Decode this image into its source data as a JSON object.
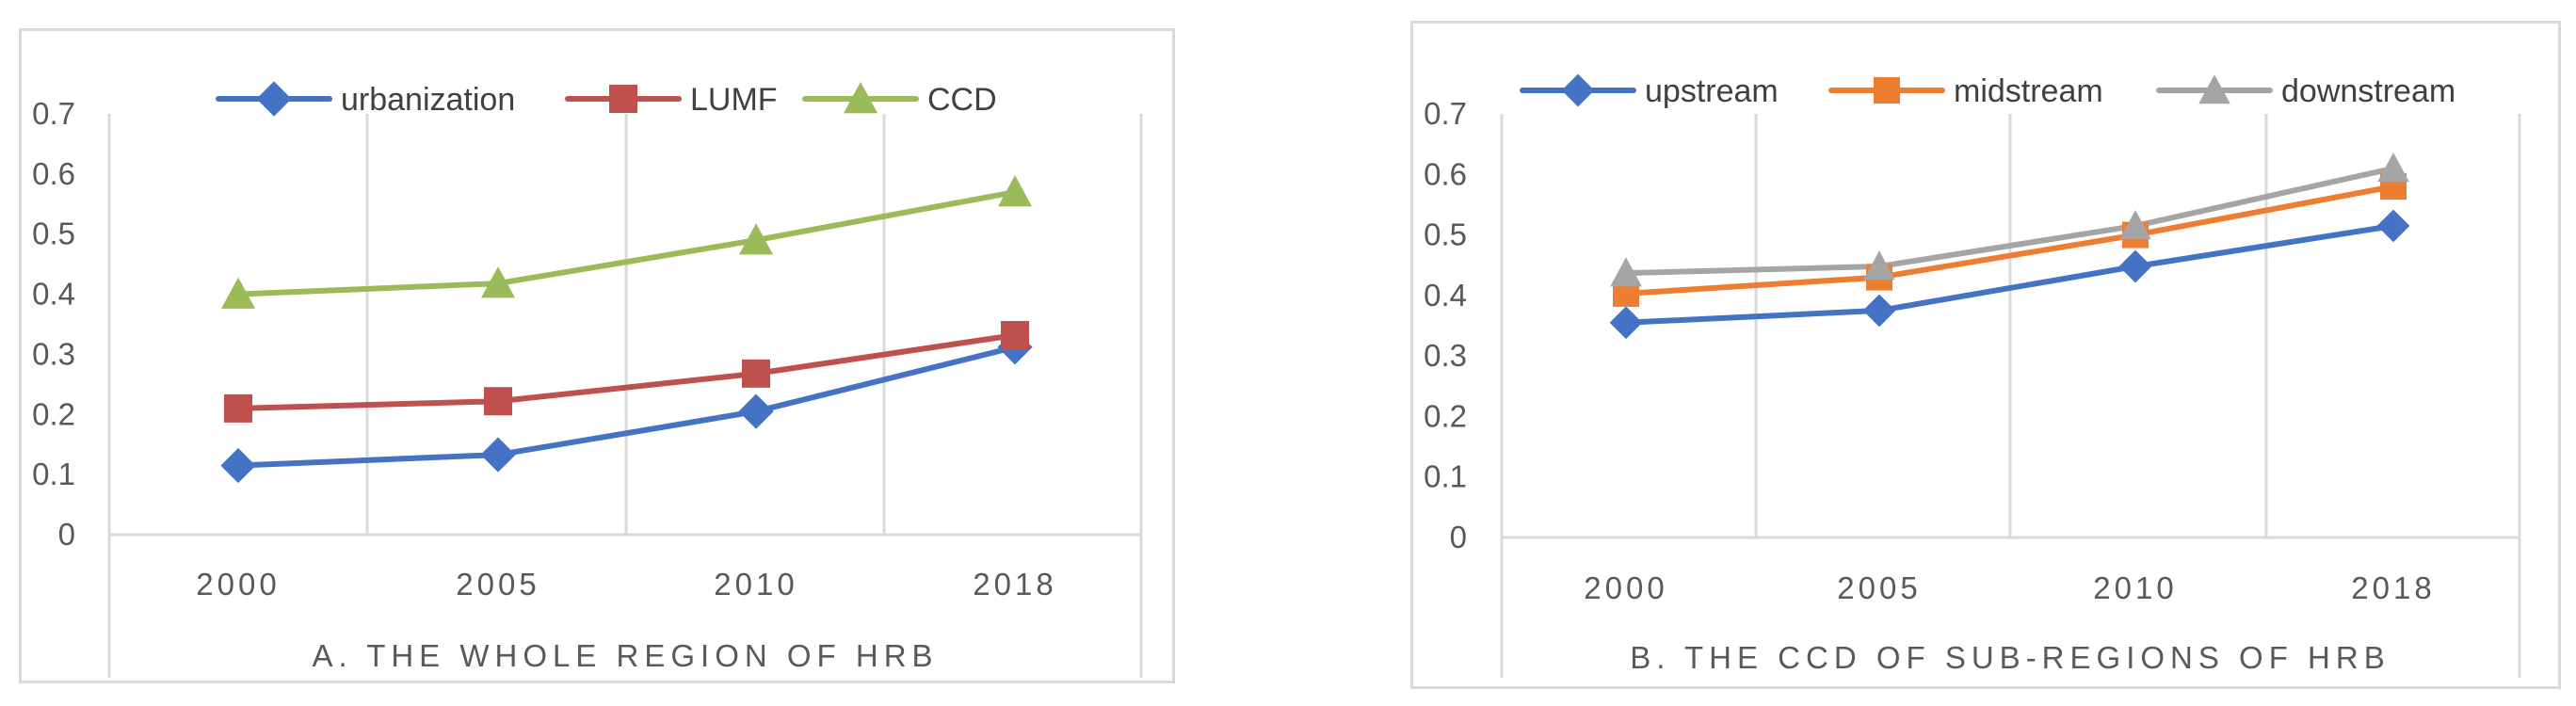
{
  "colors": {
    "grid": "#d9d9d9",
    "axis_text": "#595959",
    "border": "#d9d9d9"
  },
  "chart_data": [
    {
      "type": "line",
      "title": "",
      "caption": "A. THE WHOLE REGION OF  HRB",
      "categories": [
        "2000",
        "2005",
        "2010",
        "2018"
      ],
      "ylim": [
        0,
        0.7
      ],
      "yticks": [
        "0",
        "0.1",
        "0.2",
        "0.3",
        "0.4",
        "0.5",
        "0.6",
        "0.7"
      ],
      "grid": "vertical",
      "legend_position": "top",
      "series": [
        {
          "name": "urbanization",
          "values": [
            0.115,
            0.133,
            0.205,
            0.312
          ],
          "color": "#4472c4",
          "marker": "diamond"
        },
        {
          "name": "LUMF",
          "values": [
            0.21,
            0.222,
            0.268,
            0.332
          ],
          "color": "#c0504d",
          "marker": "square"
        },
        {
          "name": "CCD",
          "values": [
            0.4,
            0.418,
            0.49,
            0.57
          ],
          "color": "#9bbb59",
          "marker": "triangle"
        }
      ]
    },
    {
      "type": "line",
      "title": "",
      "caption": "B. THE CCD OF SUB-REGIONS OF HRB",
      "categories": [
        "2000",
        "2005",
        "2010",
        "2018"
      ],
      "ylim": [
        0,
        0.7
      ],
      "yticks": [
        "0",
        "0.1",
        "0.2",
        "0.3",
        "0.4",
        "0.5",
        "0.6",
        "0.7"
      ],
      "grid": "vertical",
      "legend_position": "top",
      "series": [
        {
          "name": "upstream",
          "values": [
            0.355,
            0.375,
            0.448,
            0.515
          ],
          "color": "#4472c4",
          "marker": "diamond"
        },
        {
          "name": "midstream",
          "values": [
            0.403,
            0.43,
            0.5,
            0.58
          ],
          "color": "#ed7d31",
          "marker": "square"
        },
        {
          "name": "downstream",
          "values": [
            0.437,
            0.448,
            0.515,
            0.61
          ],
          "color": "#a5a5a5",
          "marker": "triangle"
        }
      ]
    }
  ]
}
